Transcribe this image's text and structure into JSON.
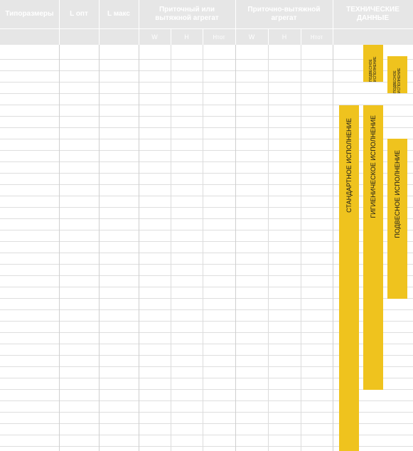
{
  "header": {
    "columns": [
      {
        "label": "Типоразмеры"
      },
      {
        "label": "L опт"
      },
      {
        "label": "L макс"
      },
      {
        "label": "Приточный или вытяжной агрегат"
      },
      {
        "label": "Приточно-вытяжной агрегат"
      },
      {
        "label": "ТЕХНИЧЕСКИЕ ДАННЫЕ"
      }
    ],
    "sub_group1": [
      "W",
      "H",
      "Hтот"
    ],
    "sub_group2": [
      "W",
      "H",
      "Hтот"
    ]
  },
  "bars": {
    "standard": "СТАНДАРТНОЕ ИСПОЛНЕНИЕ",
    "hygienic": "ГИГИЕНИЧЕСКОЕ ИСПОЛНЕНИЕ",
    "suspended": "ПОДВЕСНОЕ ИСПОЛНЕНИЕ",
    "suspended_small_a": "ПОДВЕСНОЕ ИСПОЛНЕНИЕ",
    "suspended_small_b": "ПОДВЕСНОЕ ИСПОЛНЕНИЕ"
  },
  "colors": {
    "accent": "#efc31e",
    "header_bg": "#e6e6e6"
  }
}
